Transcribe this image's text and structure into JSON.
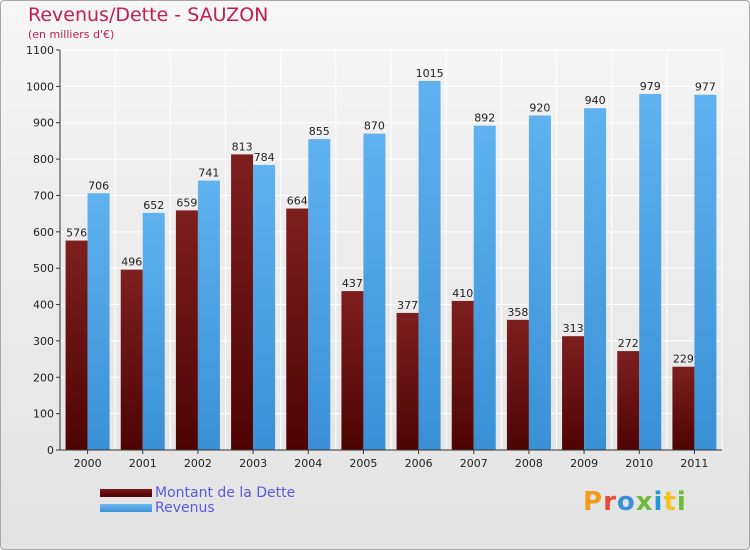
{
  "header": {
    "title": "Revenus/Dette - SAUZON",
    "subtitle": "(en milliers d'€)"
  },
  "legend": {
    "debt_label": "Montant de la Dette",
    "revenue_label": "Revenus"
  },
  "logo": {
    "letters": [
      "P",
      "r",
      "o",
      "x",
      "i",
      "t",
      "i"
    ]
  },
  "colors": {
    "debt": "#6a0f0f",
    "revenue": "#4aa3e6",
    "title": "#c31d56",
    "legend_text": "#5a5ae0"
  },
  "chart_data": {
    "type": "bar",
    "title": "Revenus/Dette - SAUZON",
    "ylabel": "(en milliers d'€)",
    "xlabel": "",
    "categories": [
      "2000",
      "2001",
      "2002",
      "2003",
      "2004",
      "2005",
      "2006",
      "2007",
      "2008",
      "2009",
      "2010",
      "2011"
    ],
    "series": [
      {
        "name": "Montant de la Dette",
        "values": [
          576,
          496,
          659,
          813,
          664,
          437,
          377,
          410,
          358,
          313,
          272,
          229
        ]
      },
      {
        "name": "Revenus",
        "values": [
          706,
          652,
          741,
          784,
          855,
          870,
          1015,
          892,
          920,
          940,
          979,
          977
        ]
      }
    ],
    "ylim": [
      0,
      1100
    ],
    "yticks": [
      0,
      100,
      200,
      300,
      400,
      500,
      600,
      700,
      800,
      900,
      1000,
      1100
    ],
    "grid": true,
    "legend_position": "bottom-left"
  }
}
